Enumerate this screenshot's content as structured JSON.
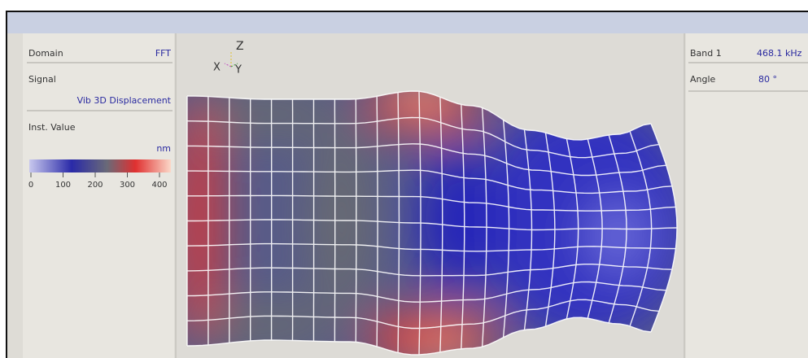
{
  "left_panel": {
    "domain_label": "Domain",
    "domain_value": "FFT",
    "signal_label": "Signal",
    "signal_value": "Vib 3D Displacement",
    "value_label": "Inst. Value",
    "unit": "nm",
    "scale_ticks": [
      0,
      100,
      200,
      300,
      400
    ]
  },
  "axes": {
    "z": "Z",
    "x": "X",
    "y": "Y"
  },
  "right_panel": {
    "band_label": "Band 1",
    "band_value": "468.1 kHz",
    "angle_label": "Angle",
    "angle_value": "80 °"
  }
}
